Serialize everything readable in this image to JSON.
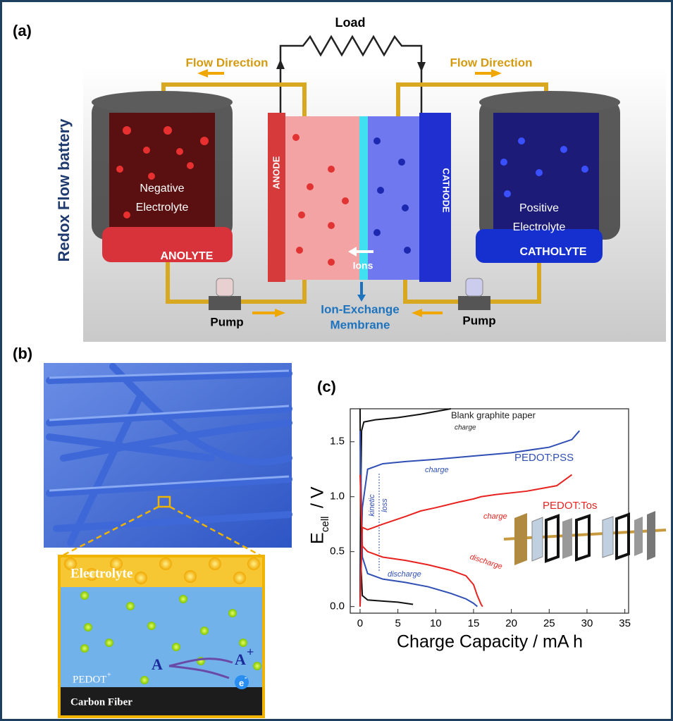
{
  "panel_a": {
    "label": "(a)",
    "side_title": "Redox Flow battery",
    "load": "Load",
    "flow_left": "Flow Direction",
    "flow_right": "Flow Direction",
    "negative": [
      "Negative",
      "Electrolyte"
    ],
    "anolyte": "ANOLYTE",
    "anode": "ANODE",
    "ions": "Ions",
    "cathode": "CATHODE",
    "positive": [
      "Positive",
      "Electrolyte"
    ],
    "catholyte": "CATHOLYTE",
    "pump_left": "Pump",
    "pump_right": "Pump",
    "membrane": [
      "Ion-Exchange",
      "Membrane"
    ]
  },
  "panel_b": {
    "label": "(b)",
    "electrolyte": "Electrolyte",
    "pedot": "PEDOT",
    "pedot_sup": "+",
    "carbon_fiber": "Carbon Fiber",
    "reactant": "A",
    "product": "A",
    "product_charge": "+",
    "electron": "e",
    "electron_charge": "-"
  },
  "chart_data": {
    "type": "line",
    "label": "(c)",
    "xlabel": "Charge Capacity / mA h",
    "ylabel": "E",
    "ylabel_sub": "cell",
    "ylabel_unit": " / V",
    "xlim": [
      -1.3,
      35.5
    ],
    "ylim": [
      -0.06,
      1.8
    ],
    "xticks": [
      0,
      5,
      10,
      15,
      20,
      25,
      30,
      35
    ],
    "yticks": [
      {
        "value": 0,
        "label": "0.0"
      },
      {
        "value": 0.5,
        "label": "0.5"
      },
      {
        "value": 1,
        "label": "1.0"
      },
      {
        "value": 1.5,
        "label": "1.5"
      }
    ],
    "series": [
      {
        "name": "Blank graphite paper",
        "color": "#111111",
        "charge": {
          "x": [
            0,
            0.05,
            0.2,
            0.5,
            2,
            5,
            8,
            12
          ],
          "y": [
            0,
            0.8,
            1.6,
            1.68,
            1.7,
            1.72,
            1.75,
            1.8
          ]
        },
        "discharge": {
          "x": [
            0,
            0.1,
            0.3,
            1,
            3,
            5,
            7
          ],
          "y": [
            1.8,
            0.4,
            0.1,
            0.06,
            0.05,
            0.04,
            0.02
          ]
        }
      },
      {
        "name": "PEDOT:PSS",
        "color": "#2f4fb5",
        "charge": {
          "x": [
            0,
            0.3,
            1,
            3,
            6,
            10,
            15,
            20,
            25,
            28,
            29
          ],
          "y": [
            0,
            0.9,
            1.25,
            1.3,
            1.32,
            1.34,
            1.37,
            1.4,
            1.45,
            1.52,
            1.6
          ]
        },
        "discharge": {
          "x": [
            0,
            0.3,
            1,
            3,
            6,
            9,
            12,
            14,
            15,
            15.5
          ],
          "y": [
            1.6,
            0.45,
            0.3,
            0.25,
            0.22,
            0.18,
            0.12,
            0.07,
            0.03,
            0
          ]
        }
      },
      {
        "name": "PEDOT:Tos",
        "color": "#e8231f",
        "charge": {
          "x": [
            0,
            0.3,
            1,
            3,
            6,
            8,
            10,
            13,
            15,
            16,
            18,
            22,
            26,
            28
          ],
          "y": [
            0,
            0.72,
            0.7,
            0.75,
            0.82,
            0.87,
            0.9,
            0.95,
            0.98,
            1,
            1.02,
            1.05,
            1.1,
            1.2
          ]
        },
        "discharge": {
          "x": [
            0,
            0.3,
            1,
            3,
            6,
            9,
            12,
            14,
            15,
            15.5,
            16,
            16.2
          ],
          "y": [
            1.2,
            0.55,
            0.5,
            0.45,
            0.42,
            0.38,
            0.33,
            0.28,
            0.2,
            0.1,
            0.02,
            0
          ]
        }
      }
    ],
    "annotations": {
      "blank_charge": "charge",
      "pss_charge": "charge",
      "tos_charge": "charge",
      "tos_discharge": "discharge",
      "pss_discharge": "discharge",
      "kinetic": "kinetic",
      "loss": "loss"
    }
  }
}
